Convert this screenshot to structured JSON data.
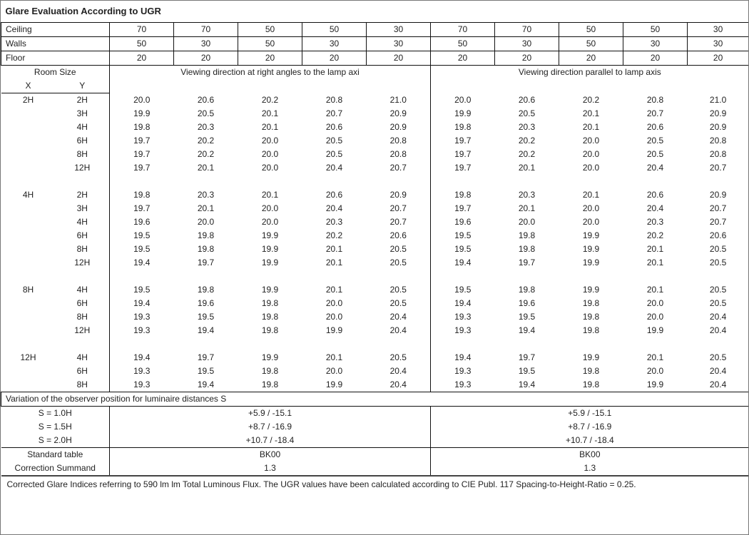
{
  "title": "Glare Evaluation According to UGR",
  "reflectances": [
    {
      "label": "Ceiling",
      "values": [
        "70",
        "70",
        "50",
        "50",
        "30",
        "70",
        "70",
        "50",
        "50",
        "30"
      ]
    },
    {
      "label": "Walls",
      "values": [
        "50",
        "30",
        "50",
        "30",
        "30",
        "50",
        "30",
        "50",
        "30",
        "30"
      ]
    },
    {
      "label": "Floor",
      "values": [
        "20",
        "20",
        "20",
        "20",
        "20",
        "20",
        "20",
        "20",
        "20",
        "20"
      ]
    }
  ],
  "header": {
    "room_size": "Room Size",
    "x": "X",
    "y": "Y",
    "dir_right_angles": "Viewing direction at right angles to the lamp axi",
    "dir_parallel": "Viewing direction parallel to lamp axis"
  },
  "groups": [
    {
      "x": "2H",
      "rows": [
        {
          "y": "2H",
          "values": [
            "20.0",
            "20.6",
            "20.2",
            "20.8",
            "21.0",
            "20.0",
            "20.6",
            "20.2",
            "20.8",
            "21.0"
          ]
        },
        {
          "y": "3H",
          "values": [
            "19.9",
            "20.5",
            "20.1",
            "20.7",
            "20.9",
            "19.9",
            "20.5",
            "20.1",
            "20.7",
            "20.9"
          ]
        },
        {
          "y": "4H",
          "values": [
            "19.8",
            "20.3",
            "20.1",
            "20.6",
            "20.9",
            "19.8",
            "20.3",
            "20.1",
            "20.6",
            "20.9"
          ]
        },
        {
          "y": "6H",
          "values": [
            "19.7",
            "20.2",
            "20.0",
            "20.5",
            "20.8",
            "19.7",
            "20.2",
            "20.0",
            "20.5",
            "20.8"
          ]
        },
        {
          "y": "8H",
          "values": [
            "19.7",
            "20.2",
            "20.0",
            "20.5",
            "20.8",
            "19.7",
            "20.2",
            "20.0",
            "20.5",
            "20.8"
          ]
        },
        {
          "y": "12H",
          "values": [
            "19.7",
            "20.1",
            "20.0",
            "20.4",
            "20.7",
            "19.7",
            "20.1",
            "20.0",
            "20.4",
            "20.7"
          ]
        }
      ]
    },
    {
      "x": "4H",
      "rows": [
        {
          "y": "2H",
          "values": [
            "19.8",
            "20.3",
            "20.1",
            "20.6",
            "20.9",
            "19.8",
            "20.3",
            "20.1",
            "20.6",
            "20.9"
          ]
        },
        {
          "y": "3H",
          "values": [
            "19.7",
            "20.1",
            "20.0",
            "20.4",
            "20.7",
            "19.7",
            "20.1",
            "20.0",
            "20.4",
            "20.7"
          ]
        },
        {
          "y": "4H",
          "values": [
            "19.6",
            "20.0",
            "20.0",
            "20.3",
            "20.7",
            "19.6",
            "20.0",
            "20.0",
            "20.3",
            "20.7"
          ]
        },
        {
          "y": "6H",
          "values": [
            "19.5",
            "19.8",
            "19.9",
            "20.2",
            "20.6",
            "19.5",
            "19.8",
            "19.9",
            "20.2",
            "20.6"
          ]
        },
        {
          "y": "8H",
          "values": [
            "19.5",
            "19.8",
            "19.9",
            "20.1",
            "20.5",
            "19.5",
            "19.8",
            "19.9",
            "20.1",
            "20.5"
          ]
        },
        {
          "y": "12H",
          "values": [
            "19.4",
            "19.7",
            "19.9",
            "20.1",
            "20.5",
            "19.4",
            "19.7",
            "19.9",
            "20.1",
            "20.5"
          ]
        }
      ]
    },
    {
      "x": "8H",
      "rows": [
        {
          "y": "4H",
          "values": [
            "19.5",
            "19.8",
            "19.9",
            "20.1",
            "20.5",
            "19.5",
            "19.8",
            "19.9",
            "20.1",
            "20.5"
          ]
        },
        {
          "y": "6H",
          "values": [
            "19.4",
            "19.6",
            "19.8",
            "20.0",
            "20.5",
            "19.4",
            "19.6",
            "19.8",
            "20.0",
            "20.5"
          ]
        },
        {
          "y": "8H",
          "values": [
            "19.3",
            "19.5",
            "19.8",
            "20.0",
            "20.4",
            "19.3",
            "19.5",
            "19.8",
            "20.0",
            "20.4"
          ]
        },
        {
          "y": "12H",
          "values": [
            "19.3",
            "19.4",
            "19.8",
            "19.9",
            "20.4",
            "19.3",
            "19.4",
            "19.8",
            "19.9",
            "20.4"
          ]
        }
      ]
    },
    {
      "x": "12H",
      "rows": [
        {
          "y": "4H",
          "values": [
            "19.4",
            "19.7",
            "19.9",
            "20.1",
            "20.5",
            "19.4",
            "19.7",
            "19.9",
            "20.1",
            "20.5"
          ]
        },
        {
          "y": "6H",
          "values": [
            "19.3",
            "19.5",
            "19.8",
            "20.0",
            "20.4",
            "19.3",
            "19.5",
            "19.8",
            "20.0",
            "20.4"
          ]
        },
        {
          "y": "8H",
          "values": [
            "19.3",
            "19.4",
            "19.8",
            "19.9",
            "20.4",
            "19.3",
            "19.4",
            "19.8",
            "19.9",
            "20.4"
          ]
        }
      ]
    }
  ],
  "variation": {
    "title": "Variation of the observer position for luminaire distances S",
    "rows": [
      {
        "label": "S = 1.0H",
        "left": "+5.9 / -15.1",
        "right": "+5.9 / -15.1"
      },
      {
        "label": "S = 1.5H",
        "left": "+8.7 / -16.9",
        "right": "+8.7 / -16.9"
      },
      {
        "label": "S = 2.0H",
        "left": "+10.7 / -18.4",
        "right": "+10.7 / -18.4"
      }
    ]
  },
  "standard": [
    {
      "label": "Standard table",
      "left": "BK00",
      "right": "BK00"
    },
    {
      "label": "Correction Summand",
      "left": "1.3",
      "right": "1.3"
    }
  ],
  "footnote": "Corrected Glare Indices referring to 590 lm lm Total Luminous Flux. The UGR values have been calculated according to CIE Publ. 117    Spacing-to-Height-Ratio = 0.25."
}
